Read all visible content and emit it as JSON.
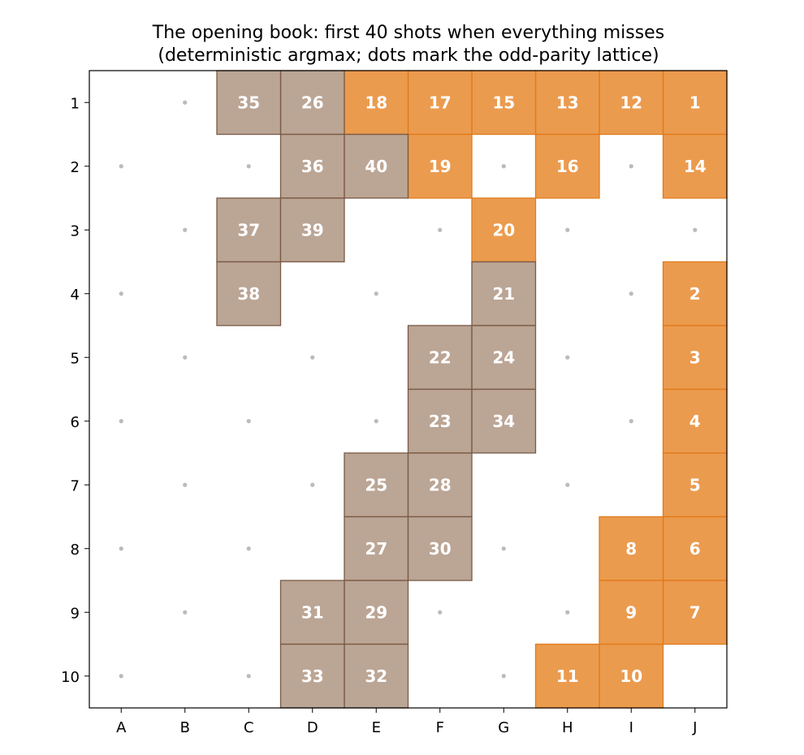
{
  "chart_data": {
    "type": "heatmap",
    "title_lines": [
      "The opening book: first 40 shots when everything misses",
      "(deterministic argmax; dots mark the odd-parity lattice)"
    ],
    "columns": [
      "A",
      "B",
      "C",
      "D",
      "E",
      "F",
      "G",
      "H",
      "I",
      "J"
    ],
    "rows": [
      "1",
      "2",
      "3",
      "4",
      "5",
      "6",
      "7",
      "8",
      "9",
      "10"
    ],
    "colors": {
      "early": "#E8892F",
      "early_edge": "#E07B1C",
      "late": "#A88C77",
      "late_edge": "#7A5A44",
      "dot": "#BBBBBB",
      "label": "#FFFFFF"
    },
    "shots": [
      {
        "order": "1",
        "col": "J",
        "row": 1
      },
      {
        "order": "2",
        "col": "J",
        "row": 4
      },
      {
        "order": "3",
        "col": "J",
        "row": 5
      },
      {
        "order": "4",
        "col": "J",
        "row": 6
      },
      {
        "order": "5",
        "col": "J",
        "row": 7
      },
      {
        "order": "6",
        "col": "J",
        "row": 8
      },
      {
        "order": "7",
        "col": "J",
        "row": 9
      },
      {
        "order": "8",
        "col": "I",
        "row": 8
      },
      {
        "order": "9",
        "col": "I",
        "row": 9
      },
      {
        "order": "10",
        "col": "I",
        "row": 10
      },
      {
        "order": "11",
        "col": "H",
        "row": 10
      },
      {
        "order": "12",
        "col": "I",
        "row": 1
      },
      {
        "order": "13",
        "col": "H",
        "row": 1
      },
      {
        "order": "14",
        "col": "J",
        "row": 2
      },
      {
        "order": "15",
        "col": "G",
        "row": 1
      },
      {
        "order": "16",
        "col": "H",
        "row": 2
      },
      {
        "order": "17",
        "col": "F",
        "row": 1
      },
      {
        "order": "18",
        "col": "E",
        "row": 1
      },
      {
        "order": "19",
        "col": "F",
        "row": 2
      },
      {
        "order": "20",
        "col": "G",
        "row": 3
      },
      {
        "order": "21",
        "col": "G",
        "row": 4
      },
      {
        "order": "22",
        "col": "F",
        "row": 5
      },
      {
        "order": "23",
        "col": "F",
        "row": 6
      },
      {
        "order": "24",
        "col": "G",
        "row": 5
      },
      {
        "order": "25",
        "col": "E",
        "row": 7
      },
      {
        "order": "26",
        "col": "D",
        "row": 1
      },
      {
        "order": "27",
        "col": "E",
        "row": 8
      },
      {
        "order": "28",
        "col": "F",
        "row": 7
      },
      {
        "order": "29",
        "col": "E",
        "row": 9
      },
      {
        "order": "30",
        "col": "F",
        "row": 8
      },
      {
        "order": "31",
        "col": "D",
        "row": 9
      },
      {
        "order": "32",
        "col": "E",
        "row": 10
      },
      {
        "order": "33",
        "col": "D",
        "row": 10
      },
      {
        "order": "34",
        "col": "G",
        "row": 6
      },
      {
        "order": "35",
        "col": "C",
        "row": 1
      },
      {
        "order": "36",
        "col": "D",
        "row": 2
      },
      {
        "order": "37",
        "col": "C",
        "row": 3
      },
      {
        "order": "38",
        "col": "C",
        "row": 4
      },
      {
        "order": "39",
        "col": "D",
        "row": 3
      },
      {
        "order": "40",
        "col": "E",
        "row": 2
      }
    ],
    "early_cutoff": 20,
    "parity_lattice": "odd",
    "grid": false
  }
}
